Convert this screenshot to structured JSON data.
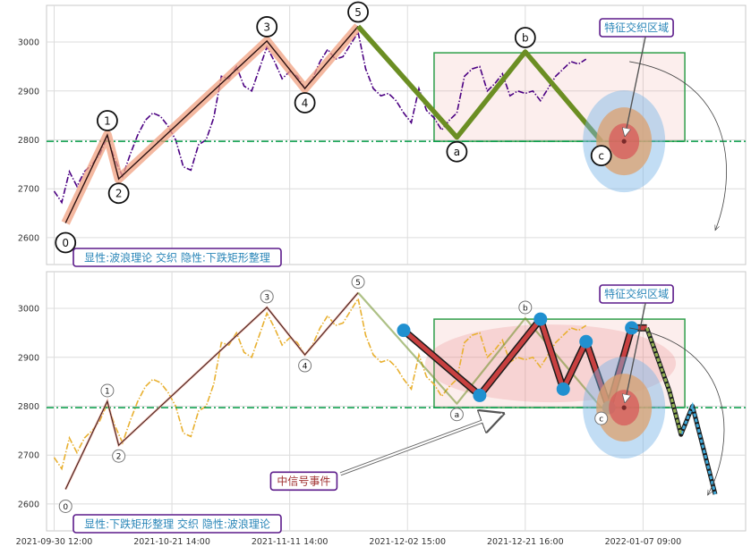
{
  "chart_data": [
    {
      "type": "line",
      "panel": "top",
      "ylim": [
        2545,
        3075
      ],
      "y_ticks": [
        2600,
        2700,
        2800,
        2900,
        3000
      ],
      "grid": true,
      "support_level": 2797,
      "box": {
        "x0": 50,
        "x1": 83,
        "y_top": 2978,
        "y_bottom": 2797
      },
      "box_label": "特征交织区域",
      "target": {
        "x": 75,
        "y": 2797
      },
      "wave_points": [
        {
          "label": "0",
          "x": 1.5,
          "y": 2630
        },
        {
          "label": "1",
          "x": 7,
          "y": 2810
        },
        {
          "label": "2",
          "x": 8.5,
          "y": 2720
        },
        {
          "label": "3",
          "x": 28,
          "y": 3002
        },
        {
          "label": "4",
          "x": 33,
          "y": 2905
        },
        {
          "label": "5",
          "x": 40,
          "y": 3032
        }
      ],
      "abc_points": [
        {
          "label": "",
          "x": 40,
          "y": 3032
        },
        {
          "label": "a",
          "x": 53,
          "y": 2805
        },
        {
          "label": "b",
          "x": 62,
          "y": 2980
        },
        {
          "label": "c",
          "x": 72,
          "y": 2797
        }
      ],
      "price_series": [
        [
          0,
          2695
        ],
        [
          1,
          2672
        ],
        [
          2,
          2735
        ],
        [
          3,
          2705
        ],
        [
          4,
          2735
        ],
        [
          5,
          2750
        ],
        [
          6,
          2770
        ],
        [
          7,
          2805
        ],
        [
          8,
          2760
        ],
        [
          9,
          2725
        ],
        [
          10,
          2770
        ],
        [
          11,
          2810
        ],
        [
          12,
          2840
        ],
        [
          13,
          2855
        ],
        [
          14,
          2848
        ],
        [
          15,
          2828
        ],
        [
          16,
          2800
        ],
        [
          17,
          2745
        ],
        [
          18,
          2738
        ],
        [
          19,
          2790
        ],
        [
          20,
          2800
        ],
        [
          21,
          2845
        ],
        [
          22,
          2930
        ],
        [
          23,
          2925
        ],
        [
          24,
          2950
        ],
        [
          25,
          2910
        ],
        [
          26,
          2900
        ],
        [
          27,
          2945
        ],
        [
          28,
          2990
        ],
        [
          29,
          2960
        ],
        [
          30,
          2925
        ],
        [
          31,
          2940
        ],
        [
          32,
          2930
        ],
        [
          33,
          2905
        ],
        [
          34,
          2925
        ],
        [
          35,
          2960
        ],
        [
          36,
          2985
        ],
        [
          37,
          2965
        ],
        [
          38,
          2970
        ],
        [
          39,
          2995
        ],
        [
          40,
          3020
        ],
        [
          41,
          2945
        ],
        [
          42,
          2905
        ],
        [
          43,
          2890
        ],
        [
          44,
          2895
        ],
        [
          45,
          2880
        ],
        [
          46,
          2855
        ],
        [
          47,
          2835
        ],
        [
          48,
          2905
        ],
        [
          49,
          2860
        ],
        [
          50,
          2845
        ],
        [
          51,
          2820
        ],
        [
          52,
          2840
        ],
        [
          53,
          2855
        ],
        [
          54,
          2930
        ],
        [
          55,
          2945
        ],
        [
          56,
          2950
        ],
        [
          57,
          2900
        ],
        [
          58,
          2915
        ],
        [
          59,
          2935
        ],
        [
          60,
          2890
        ],
        [
          61,
          2900
        ],
        [
          62,
          2895
        ],
        [
          63,
          2900
        ],
        [
          64,
          2880
        ],
        [
          65,
          2905
        ],
        [
          66,
          2930
        ],
        [
          67,
          2945
        ],
        [
          68,
          2960
        ],
        [
          69,
          2955
        ],
        [
          70,
          2965
        ]
      ],
      "annotation_bottom": "显性:波浪理论 交织 隐性:下跌矩形整理"
    },
    {
      "type": "line",
      "panel": "bottom",
      "ylim": [
        2545,
        3075
      ],
      "y_ticks": [
        2600,
        2700,
        2800,
        2900,
        3000
      ],
      "grid": true,
      "support_level": 2797,
      "box": {
        "x0": 50,
        "x1": 83,
        "y_top": 2978,
        "y_bottom": 2797
      },
      "box_label": "特征交织区域",
      "target": {
        "x": 75,
        "y": 2797
      },
      "signal_label": "中信号事件",
      "wave_points": [
        {
          "label": "0",
          "x": 1.5,
          "y": 2630
        },
        {
          "label": "1",
          "x": 7,
          "y": 2810
        },
        {
          "label": "2",
          "x": 8.5,
          "y": 2720
        },
        {
          "label": "3",
          "x": 28,
          "y": 3002
        },
        {
          "label": "4",
          "x": 33,
          "y": 2905
        },
        {
          "label": "5",
          "x": 40,
          "y": 3032
        }
      ],
      "abc_points": [
        {
          "label": "",
          "x": 40,
          "y": 3032
        },
        {
          "label": "a",
          "x": 53,
          "y": 2805
        },
        {
          "label": "b",
          "x": 62,
          "y": 2980
        },
        {
          "label": "c",
          "x": 72,
          "y": 2797
        }
      ],
      "rect_pattern": [
        {
          "x": 46,
          "y": 2955
        },
        {
          "x": 56,
          "y": 2822
        },
        {
          "x": 64,
          "y": 2978
        },
        {
          "x": 67,
          "y": 2835
        },
        {
          "x": 70,
          "y": 2932
        },
        {
          "x": 73,
          "y": 2797
        },
        {
          "x": 76,
          "y": 2960
        },
        {
          "x": 78,
          "y": 2960
        }
      ],
      "projection": [
        {
          "x": 78,
          "y": 2960
        },
        {
          "x": 81,
          "y": 2830
        },
        {
          "x": 82.5,
          "y": 2742
        },
        {
          "x": 84,
          "y": 2800
        },
        {
          "x": 87,
          "y": 2620
        }
      ],
      "x_tick_labels": [
        "2021-09-30 12:00",
        "2021-10-21 14:00",
        "2021-11-11 14:00",
        "2021-12-02 15:00",
        "2021-12-21 16:00",
        "2022-01-07 09:00"
      ],
      "annotation_bottom": "显性:下跌矩形整理 交织 隐性:波浪理论"
    }
  ],
  "colors": {
    "top_price": "#4b0082",
    "bottom_price": "#e8b030",
    "wave_glow": "#f0a080",
    "abc_line": "#6b8e23",
    "support_line": "#009a44",
    "box_stroke": "#2e9e4a",
    "label_border": "#5b1a8a",
    "label_text": "#2a86b8",
    "signal_text": "#a03030",
    "rect_dot": "#2090d0",
    "projection": "#40a8d8"
  }
}
